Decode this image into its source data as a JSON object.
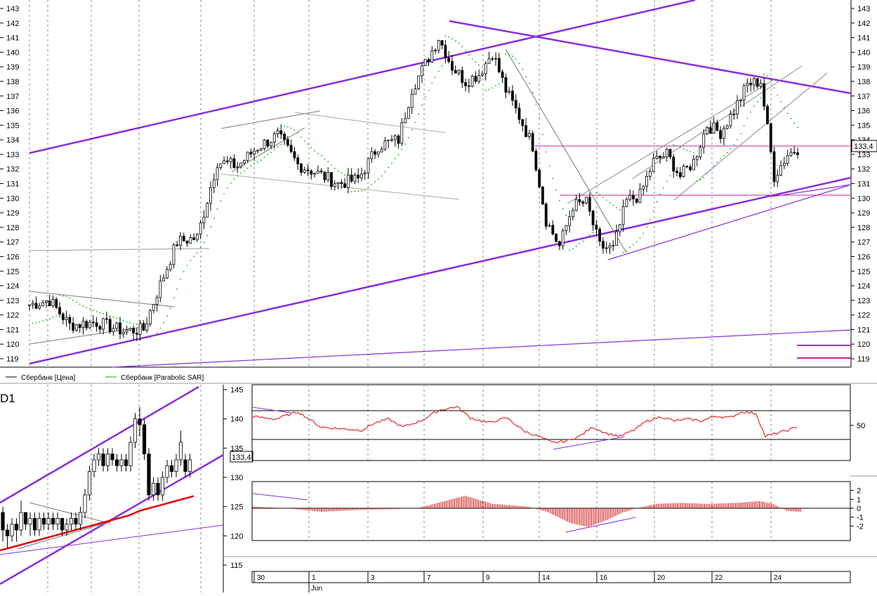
{
  "chart_data": [
    {
      "type": "candlestick",
      "name_hint": "main",
      "y_ticks": [
        119,
        120,
        121,
        122,
        123,
        124,
        125,
        126,
        127,
        128,
        129,
        130,
        131,
        132,
        133,
        134,
        135,
        136,
        137,
        138,
        139,
        140,
        141,
        142,
        143
      ],
      "ylim": [
        118.5,
        143.5
      ],
      "last_price_label": "133,4",
      "legend": [
        {
          "label": "Сбербанк [Цена]",
          "color": "#000000"
        },
        {
          "label": "Сбербанк [Parabolic SAR]",
          "color": "#00bb00"
        }
      ],
      "anchors": [
        {
          "i": 0,
          "v": 122.7
        },
        {
          "i": 6,
          "v": 123.0
        },
        {
          "i": 12,
          "v": 121.3
        },
        {
          "i": 20,
          "v": 121.5
        },
        {
          "i": 28,
          "v": 120.9
        },
        {
          "i": 34,
          "v": 121.0
        },
        {
          "i": 38,
          "v": 123.5
        },
        {
          "i": 44,
          "v": 127.0
        },
        {
          "i": 50,
          "v": 127.3
        },
        {
          "i": 56,
          "v": 132.5
        },
        {
          "i": 62,
          "v": 132.2
        },
        {
          "i": 68,
          "v": 133.5
        },
        {
          "i": 74,
          "v": 134.3
        },
        {
          "i": 80,
          "v": 132.3
        },
        {
          "i": 86,
          "v": 131.7
        },
        {
          "i": 92,
          "v": 131.0
        },
        {
          "i": 98,
          "v": 131.3
        },
        {
          "i": 104,
          "v": 133.6
        },
        {
          "i": 110,
          "v": 134.0
        },
        {
          "i": 114,
          "v": 137.5
        },
        {
          "i": 118,
          "v": 139.2
        },
        {
          "i": 122,
          "v": 141.0
        },
        {
          "i": 126,
          "v": 139.0
        },
        {
          "i": 130,
          "v": 138.0
        },
        {
          "i": 134,
          "v": 138.5
        },
        {
          "i": 138,
          "v": 140.0
        },
        {
          "i": 142,
          "v": 137.4
        },
        {
          "i": 146,
          "v": 135.6
        },
        {
          "i": 150,
          "v": 133.6
        },
        {
          "i": 154,
          "v": 128.5
        },
        {
          "i": 158,
          "v": 126.7
        },
        {
          "i": 162,
          "v": 129.5
        },
        {
          "i": 166,
          "v": 129.7
        },
        {
          "i": 170,
          "v": 126.7
        },
        {
          "i": 174,
          "v": 126.5
        },
        {
          "i": 178,
          "v": 129.8
        },
        {
          "i": 182,
          "v": 130.2
        },
        {
          "i": 186,
          "v": 132.5
        },
        {
          "i": 190,
          "v": 133.0
        },
        {
          "i": 194,
          "v": 131.5
        },
        {
          "i": 198,
          "v": 132.5
        },
        {
          "i": 202,
          "v": 135.0
        },
        {
          "i": 206,
          "v": 134.5
        },
        {
          "i": 210,
          "v": 136.0
        },
        {
          "i": 214,
          "v": 137.8
        },
        {
          "i": 218,
          "v": 138.0
        },
        {
          "i": 222,
          "v": 131.5
        },
        {
          "i": 226,
          "v": 133.0
        },
        {
          "i": 229,
          "v": 133.4
        }
      ]
    },
    {
      "type": "candlestick",
      "name_hint": "inset",
      "label": "D1",
      "y_ticks": [
        115,
        120,
        125,
        130,
        135,
        140,
        145
      ],
      "ylim": [
        112,
        146
      ],
      "last_price_label": "133,4",
      "bars": [
        {
          "o": 124,
          "c": 121,
          "h": 125,
          "l": 119
        },
        {
          "o": 121,
          "c": 120,
          "h": 122,
          "l": 118
        },
        {
          "o": 120,
          "c": 122,
          "h": 123,
          "l": 119
        },
        {
          "o": 122,
          "c": 121,
          "h": 123,
          "l": 119
        },
        {
          "o": 121,
          "c": 124,
          "h": 126,
          "l": 120
        },
        {
          "o": 124,
          "c": 122,
          "h": 124,
          "l": 121
        },
        {
          "o": 122,
          "c": 123,
          "h": 124,
          "l": 120
        },
        {
          "o": 123,
          "c": 121,
          "h": 124,
          "l": 120
        },
        {
          "o": 121,
          "c": 123,
          "h": 124,
          "l": 120
        },
        {
          "o": 123,
          "c": 122,
          "h": 124,
          "l": 121
        },
        {
          "o": 122,
          "c": 123,
          "h": 124,
          "l": 121
        },
        {
          "o": 123,
          "c": 122,
          "h": 124,
          "l": 121
        },
        {
          "o": 122,
          "c": 123,
          "h": 124,
          "l": 121
        },
        {
          "o": 123,
          "c": 121,
          "h": 123,
          "l": 120
        },
        {
          "o": 121,
          "c": 122,
          "h": 123,
          "l": 120
        },
        {
          "o": 122,
          "c": 123,
          "h": 124,
          "l": 121
        },
        {
          "o": 123,
          "c": 122,
          "h": 124,
          "l": 121
        },
        {
          "o": 122,
          "c": 124,
          "h": 125,
          "l": 121
        },
        {
          "o": 124,
          "c": 127,
          "h": 128,
          "l": 123
        },
        {
          "o": 127,
          "c": 131,
          "h": 132,
          "l": 126
        },
        {
          "o": 131,
          "c": 133,
          "h": 134,
          "l": 130
        },
        {
          "o": 133,
          "c": 134,
          "h": 135,
          "l": 132
        },
        {
          "o": 134,
          "c": 132,
          "h": 135,
          "l": 131
        },
        {
          "o": 132,
          "c": 134,
          "h": 135,
          "l": 131
        },
        {
          "o": 134,
          "c": 133,
          "h": 135,
          "l": 132
        },
        {
          "o": 133,
          "c": 132,
          "h": 134,
          "l": 131
        },
        {
          "o": 132,
          "c": 133,
          "h": 134,
          "l": 131
        },
        {
          "o": 133,
          "c": 132,
          "h": 134,
          "l": 131
        },
        {
          "o": 132,
          "c": 136,
          "h": 137,
          "l": 131
        },
        {
          "o": 136,
          "c": 140,
          "h": 141,
          "l": 135
        },
        {
          "o": 140,
          "c": 139,
          "h": 142,
          "l": 137
        },
        {
          "o": 139,
          "c": 134,
          "h": 140,
          "l": 133
        },
        {
          "o": 134,
          "c": 127,
          "h": 135,
          "l": 126
        },
        {
          "o": 127,
          "c": 129,
          "h": 130,
          "l": 126
        },
        {
          "o": 129,
          "c": 127,
          "h": 130,
          "l": 126
        },
        {
          "o": 127,
          "c": 130,
          "h": 131,
          "l": 126
        },
        {
          "o": 130,
          "c": 132,
          "h": 133,
          "l": 129
        },
        {
          "o": 132,
          "c": 131,
          "h": 133,
          "l": 130
        },
        {
          "o": 131,
          "c": 133,
          "h": 134,
          "l": 130
        },
        {
          "o": 133,
          "c": 136,
          "h": 138,
          "l": 132
        },
        {
          "o": 133,
          "c": 131,
          "h": 134,
          "l": 130
        },
        {
          "o": 131,
          "c": 133,
          "h": 134,
          "l": 130
        }
      ],
      "sar_like": [
        117.5,
        118,
        118.5,
        119,
        119.5,
        120,
        120.5,
        121,
        121.5,
        122,
        122.5,
        123,
        123.5,
        124,
        124.2,
        124.4,
        124.6,
        124.8,
        125
      ]
    },
    {
      "type": "line",
      "name_hint": "oscillator",
      "y_ticks": [
        "50"
      ],
      "levels": [
        70,
        30
      ],
      "ylim": [
        0,
        100
      ],
      "anchors": [
        {
          "i": 0,
          "v": 62
        },
        {
          "i": 10,
          "v": 58
        },
        {
          "i": 20,
          "v": 70
        },
        {
          "i": 30,
          "v": 45
        },
        {
          "i": 40,
          "v": 42
        },
        {
          "i": 48,
          "v": 40
        },
        {
          "i": 54,
          "v": 52
        },
        {
          "i": 60,
          "v": 58
        },
        {
          "i": 66,
          "v": 45
        },
        {
          "i": 74,
          "v": 55
        },
        {
          "i": 82,
          "v": 72
        },
        {
          "i": 90,
          "v": 78
        },
        {
          "i": 96,
          "v": 60
        },
        {
          "i": 104,
          "v": 52
        },
        {
          "i": 112,
          "v": 60
        },
        {
          "i": 120,
          "v": 38
        },
        {
          "i": 126,
          "v": 30
        },
        {
          "i": 132,
          "v": 20
        },
        {
          "i": 138,
          "v": 22
        },
        {
          "i": 144,
          "v": 30
        },
        {
          "i": 150,
          "v": 45
        },
        {
          "i": 156,
          "v": 35
        },
        {
          "i": 162,
          "v": 30
        },
        {
          "i": 168,
          "v": 40
        },
        {
          "i": 174,
          "v": 55
        },
        {
          "i": 180,
          "v": 62
        },
        {
          "i": 186,
          "v": 55
        },
        {
          "i": 192,
          "v": 58
        },
        {
          "i": 198,
          "v": 55
        },
        {
          "i": 204,
          "v": 63
        },
        {
          "i": 210,
          "v": 60
        },
        {
          "i": 216,
          "v": 70
        },
        {
          "i": 222,
          "v": 67
        },
        {
          "i": 226,
          "v": 30
        },
        {
          "i": 236,
          "v": 40
        },
        {
          "i": 240,
          "v": 45
        }
      ]
    },
    {
      "type": "bar",
      "name_hint": "histogram",
      "y_ticks": [
        "2",
        "1",
        "0",
        "-1",
        "-2"
      ],
      "ylim": [
        -3,
        3
      ],
      "anchors": [
        {
          "i": 0,
          "v": 0.2
        },
        {
          "i": 20,
          "v": 0.0
        },
        {
          "i": 40,
          "v": -0.4
        },
        {
          "i": 60,
          "v": -0.2
        },
        {
          "i": 80,
          "v": -0.1
        },
        {
          "i": 96,
          "v": 0.0
        },
        {
          "i": 112,
          "v": 0.8
        },
        {
          "i": 124,
          "v": 1.4
        },
        {
          "i": 140,
          "v": 0.5
        },
        {
          "i": 160,
          "v": 0.2
        },
        {
          "i": 172,
          "v": -0.4
        },
        {
          "i": 186,
          "v": -1.7
        },
        {
          "i": 196,
          "v": -2.1
        },
        {
          "i": 206,
          "v": -1.4
        },
        {
          "i": 216,
          "v": -0.5
        },
        {
          "i": 224,
          "v": 0.0
        },
        {
          "i": 236,
          "v": 0.5
        },
        {
          "i": 250,
          "v": 0.6
        },
        {
          "i": 266,
          "v": 0.5
        },
        {
          "i": 282,
          "v": 0.6
        },
        {
          "i": 296,
          "v": 0.8
        },
        {
          "i": 304,
          "v": 0.5
        },
        {
          "i": 312,
          "v": -0.3
        },
        {
          "i": 320,
          "v": -0.4
        }
      ]
    }
  ],
  "x_axis": {
    "dates": [
      "30",
      "1",
      "3",
      "7",
      "9",
      "14",
      "16",
      "20",
      "22",
      "24"
    ],
    "month": "Jun"
  }
}
